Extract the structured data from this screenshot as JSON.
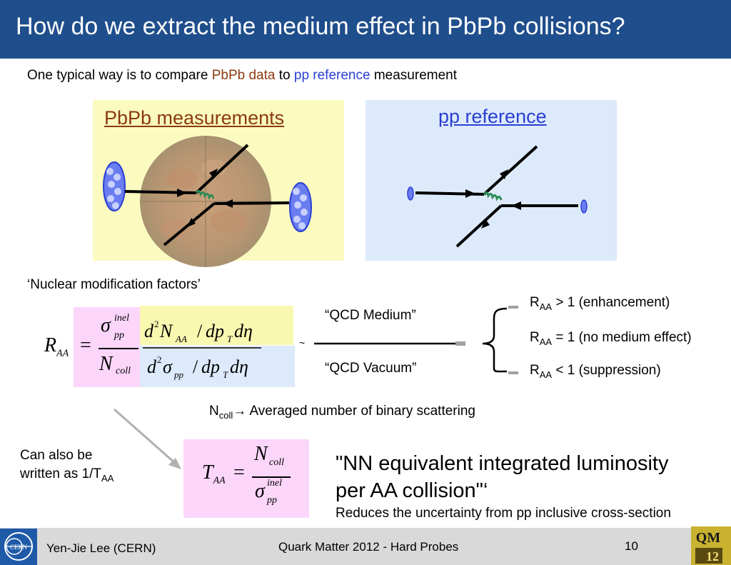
{
  "header": {
    "title": "How do we extract the medium effect in PbPb collisions?"
  },
  "intro": {
    "prefix": "One typical way is to compare ",
    "pbpb": "PbPb data",
    "mid": " to ",
    "pp": "pp reference",
    "suffix": " measurement"
  },
  "panels": {
    "pbpb_title": "PbPb measurements",
    "pp_title": "pp reference"
  },
  "nmf_label": "‘Nuclear modification factors’",
  "formula": {
    "lhs": "R",
    "lhs_sub": "AA",
    "sigma": "σ",
    "sigma_sup": "inel",
    "sigma_sub": "pp",
    "ncoll": "N",
    "ncoll_sub": "coll",
    "num": "d²N_AA / dp_T dη",
    "den": "d²σ_pp / dp_T dη"
  },
  "qcd": {
    "medium": "“QCD Medium”",
    "vacuum": "“QCD Vacuum”",
    "tilde": "~"
  },
  "raa": [
    {
      "r": "R",
      "sub": "AA",
      "text": " > 1 (enhancement)"
    },
    {
      "r": "R",
      "sub": "AA",
      "text": " = 1 (no medium effect)"
    },
    {
      "r": "R",
      "sub": "AA",
      "text": " < 1 (suppression)"
    }
  ],
  "ncoll_def": {
    "n": "N",
    "sub": "coll",
    "arrow": "→",
    "text": " Averaged number of binary scattering"
  },
  "also": {
    "line1": "Can also be",
    "line2": "written  as 1/T",
    "sub": "AA"
  },
  "taa": {
    "lhs": "T",
    "lhs_sub": "AA",
    "num": "N",
    "num_sub": "coll",
    "den": "σ",
    "den_sup": "inel",
    "den_sub": "pp"
  },
  "quote": {
    "line1": "\"NN equivalent integrated luminosity",
    "line2": "per AA collision\"‘"
  },
  "reduces": "Reduces the uncertainty from pp inclusive cross-section",
  "footer": {
    "author": "Yen-Jie Lee (CERN)",
    "conference": "Quark Matter 2012 - Hard Probes",
    "page": "10"
  },
  "logos": {
    "cern": "CERN",
    "qm": "QM",
    "qm_year": "12"
  },
  "colors": {
    "title_bar": "#1f4e8c",
    "pbpb": "#8b3a10",
    "pp": "#2a3fd4",
    "pbpb_bg": "#fbfbc0",
    "pp_bg": "#ddeafb",
    "pink": "#fbd6fa"
  }
}
